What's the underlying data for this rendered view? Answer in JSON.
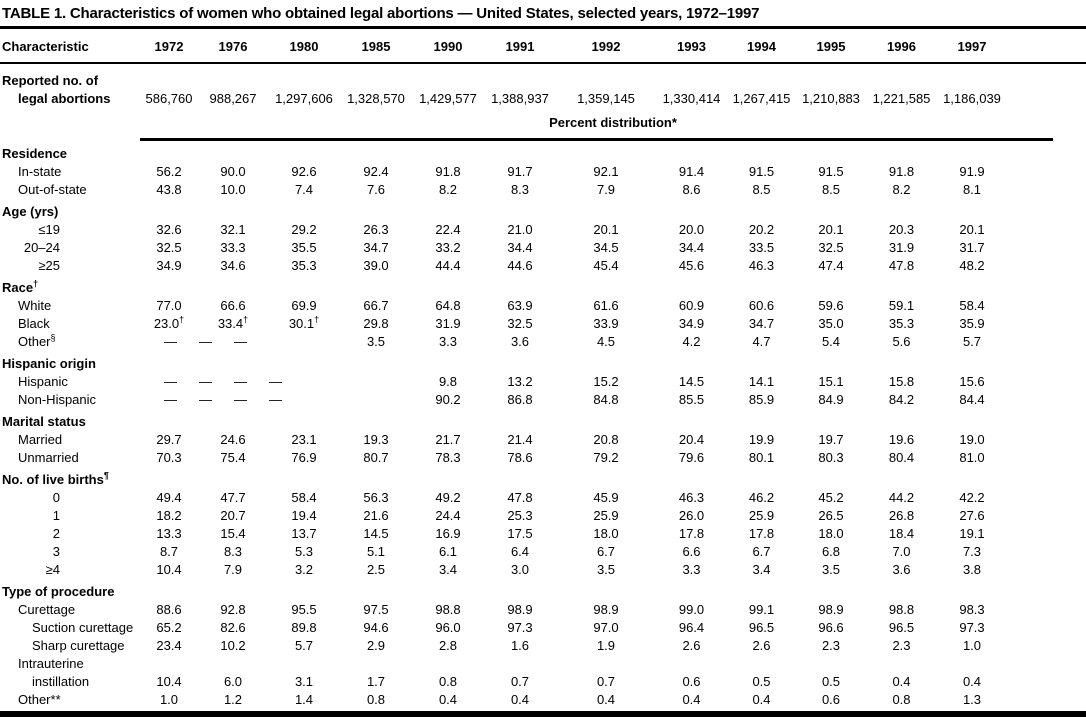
{
  "title": "TABLE 1. Characteristics of women who obtained legal abortions — United States, selected years, 1972–1997",
  "colors": {
    "text": "#000000",
    "background": "#ffffff",
    "rule": "#000000"
  },
  "table": {
    "header": {
      "characteristic": "Characteristic",
      "years": [
        "1972",
        "1976",
        "1980",
        "1985",
        "1990",
        "1991",
        "1992",
        "1993",
        "1994",
        "1995",
        "1996",
        "1997"
      ]
    },
    "reported_row": {
      "label_line1": "Reported no. of",
      "label_line2": "legal abortions",
      "values": [
        "586,760",
        "988,267",
        "1,297,606",
        "1,328,570",
        "1,429,577",
        "1,388,937",
        "1,359,145",
        "1,330,414",
        "1,267,415",
        "1,210,883",
        "1,221,585",
        "1,186,039"
      ]
    },
    "percent_distribution_label": "Percent distribution*",
    "rows": [
      {
        "type": "section",
        "label": "Residence"
      },
      {
        "type": "data",
        "indent": "sub",
        "label": "In-state",
        "values": [
          "56.2",
          "90.0",
          "92.6",
          "92.4",
          "91.8",
          "91.7",
          "92.1",
          "91.4",
          "91.5",
          "91.5",
          "91.8",
          "91.9"
        ]
      },
      {
        "type": "data",
        "indent": "sub",
        "label": "Out-of-state",
        "values": [
          "43.8",
          "10.0",
          "7.4",
          "7.6",
          "8.2",
          "8.3",
          "7.9",
          "8.6",
          "8.5",
          "8.5",
          "8.2",
          "8.1"
        ]
      },
      {
        "type": "section",
        "label": "Age (yrs)"
      },
      {
        "type": "data",
        "indent": "num",
        "label": "≤19",
        "values": [
          "32.6",
          "32.1",
          "29.2",
          "26.3",
          "22.4",
          "21.0",
          "20.1",
          "20.0",
          "20.2",
          "20.1",
          "20.3",
          "20.1"
        ]
      },
      {
        "type": "data",
        "indent": "num",
        "label": "20–24",
        "values": [
          "32.5",
          "33.3",
          "35.5",
          "34.7",
          "33.2",
          "34.4",
          "34.5",
          "34.4",
          "33.5",
          "32.5",
          "31.9",
          "31.7"
        ]
      },
      {
        "type": "data",
        "indent": "num",
        "label": "≥25",
        "values": [
          "34.9",
          "34.6",
          "35.3",
          "39.0",
          "44.4",
          "44.6",
          "45.4",
          "45.6",
          "46.3",
          "47.4",
          "47.8",
          "48.2"
        ]
      },
      {
        "type": "section",
        "label": "Race†"
      },
      {
        "type": "data",
        "indent": "sub",
        "label": "White",
        "values": [
          "77.0",
          "66.6",
          "69.9",
          "66.7",
          "64.8",
          "63.9",
          "61.6",
          "60.9",
          "60.6",
          "59.6",
          "59.1",
          "58.4"
        ]
      },
      {
        "type": "data",
        "indent": "sub",
        "label": "Black",
        "values": [
          "23.0†",
          "33.4†",
          "30.1†",
          "29.8",
          "31.9",
          "32.5",
          "33.9",
          "34.9",
          "34.7",
          "35.0",
          "35.3",
          "35.9"
        ]
      },
      {
        "type": "data",
        "indent": "sub",
        "label": "Other§",
        "values": [
          "—",
          "—",
          "—",
          "3.5",
          "3.3",
          "3.6",
          "4.5",
          "4.2",
          "4.7",
          "5.4",
          "5.6",
          "5.7"
        ]
      },
      {
        "type": "section",
        "label": "Hispanic origin"
      },
      {
        "type": "data",
        "indent": "sub",
        "label": "Hispanic",
        "values": [
          "—",
          "—",
          "—",
          "—",
          "9.8",
          "13.2",
          "15.2",
          "14.5",
          "14.1",
          "15.1",
          "15.8",
          "15.6"
        ]
      },
      {
        "type": "data",
        "indent": "sub",
        "label": "Non-Hispanic",
        "values": [
          "—",
          "—",
          "—",
          "—",
          "90.2",
          "86.8",
          "84.8",
          "85.5",
          "85.9",
          "84.9",
          "84.2",
          "84.4"
        ]
      },
      {
        "type": "section",
        "label": "Marital status"
      },
      {
        "type": "data",
        "indent": "sub",
        "label": "Married",
        "values": [
          "29.7",
          "24.6",
          "23.1",
          "19.3",
          "21.7",
          "21.4",
          "20.8",
          "20.4",
          "19.9",
          "19.7",
          "19.6",
          "19.0"
        ]
      },
      {
        "type": "data",
        "indent": "sub",
        "label": "Unmarried",
        "values": [
          "70.3",
          "75.4",
          "76.9",
          "80.7",
          "78.3",
          "78.6",
          "79.2",
          "79.6",
          "80.1",
          "80.3",
          "80.4",
          "81.0"
        ]
      },
      {
        "type": "section",
        "label": "No. of live births¶"
      },
      {
        "type": "data",
        "indent": "num",
        "label": "0",
        "values": [
          "49.4",
          "47.7",
          "58.4",
          "56.3",
          "49.2",
          "47.8",
          "45.9",
          "46.3",
          "46.2",
          "45.2",
          "44.2",
          "42.2"
        ]
      },
      {
        "type": "data",
        "indent": "num",
        "label": "1",
        "values": [
          "18.2",
          "20.7",
          "19.4",
          "21.6",
          "24.4",
          "25.3",
          "25.9",
          "26.0",
          "25.9",
          "26.5",
          "26.8",
          "27.6"
        ]
      },
      {
        "type": "data",
        "indent": "num",
        "label": "2",
        "values": [
          "13.3",
          "15.4",
          "13.7",
          "14.5",
          "16.9",
          "17.5",
          "18.0",
          "17.8",
          "17.8",
          "18.0",
          "18.4",
          "19.1"
        ]
      },
      {
        "type": "data",
        "indent": "num",
        "label": "3",
        "values": [
          "8.7",
          "8.3",
          "5.3",
          "5.1",
          "6.1",
          "6.4",
          "6.7",
          "6.6",
          "6.7",
          "6.8",
          "7.0",
          "7.3"
        ]
      },
      {
        "type": "data",
        "indent": "num",
        "label": "≥4",
        "values": [
          "10.4",
          "7.9",
          "3.2",
          "2.5",
          "3.4",
          "3.0",
          "3.5",
          "3.3",
          "3.4",
          "3.5",
          "3.6",
          "3.8"
        ]
      },
      {
        "type": "section",
        "label": "Type of procedure"
      },
      {
        "type": "data",
        "indent": "sub",
        "label": "Curettage",
        "values": [
          "88.6",
          "92.8",
          "95.5",
          "97.5",
          "98.8",
          "98.9",
          "98.9",
          "99.0",
          "99.1",
          "98.9",
          "98.8",
          "98.3"
        ]
      },
      {
        "type": "data",
        "indent": "sub2",
        "label": "Suction curettage",
        "values": [
          "65.2",
          "82.6",
          "89.8",
          "94.6",
          "96.0",
          "97.3",
          "97.0",
          "96.4",
          "96.5",
          "96.6",
          "96.5",
          "97.3"
        ]
      },
      {
        "type": "data",
        "indent": "sub2",
        "label": "Sharp curettage",
        "values": [
          "23.4",
          "10.2",
          "5.7",
          "2.9",
          "2.8",
          "1.6",
          "1.9",
          "2.6",
          "2.6",
          "2.3",
          "2.3",
          "1.0"
        ]
      },
      {
        "type": "data",
        "indent": "sub",
        "label": "Intrauterine",
        "label2": "instillation",
        "values": [
          "10.4",
          "6.0",
          "3.1",
          "1.7",
          "0.8",
          "0.7",
          "0.7",
          "0.6",
          "0.5",
          "0.5",
          "0.4",
          "0.4"
        ]
      },
      {
        "type": "data",
        "indent": "sub",
        "label": "Other**",
        "values": [
          "1.0",
          "1.2",
          "1.4",
          "0.8",
          "0.4",
          "0.4",
          "0.4",
          "0.4",
          "0.4",
          "0.6",
          "0.8",
          "1.3"
        ]
      }
    ]
  }
}
